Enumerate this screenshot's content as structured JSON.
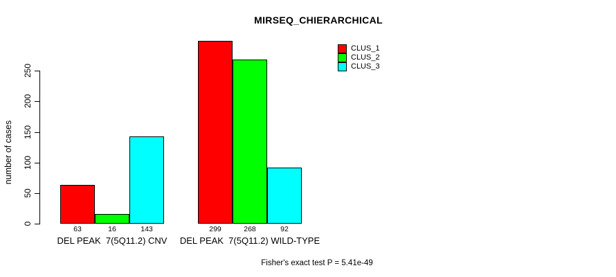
{
  "chart_data": {
    "type": "bar",
    "title": "MIRSEQ_CHIERARCHICAL",
    "xlabel": "",
    "ylabel": "number of cases",
    "categories": [
      "DEL PEAK  7(5Q11.2) CNV",
      "DEL PEAK  7(5Q11.2) WILD-TYPE"
    ],
    "series": [
      {
        "name": "CLUS_1",
        "color": "#ff0000",
        "values": [
          63,
          299
        ]
      },
      {
        "name": "CLUS_2",
        "color": "#00ff00",
        "values": [
          16,
          268
        ]
      },
      {
        "name": "CLUS_3",
        "color": "#00ffff",
        "values": [
          143,
          92
        ]
      }
    ],
    "bar_value_labels": [
      [
        "63",
        "16",
        "143"
      ],
      [
        "299",
        "268",
        "92"
      ]
    ],
    "yticks": [
      "0",
      "50",
      "100",
      "150",
      "200",
      "250"
    ],
    "ylim": [
      0,
      250
    ],
    "grid": false,
    "legend_position": "top-right",
    "annotation": "Fisher's exact test P = 5.41e-49"
  }
}
